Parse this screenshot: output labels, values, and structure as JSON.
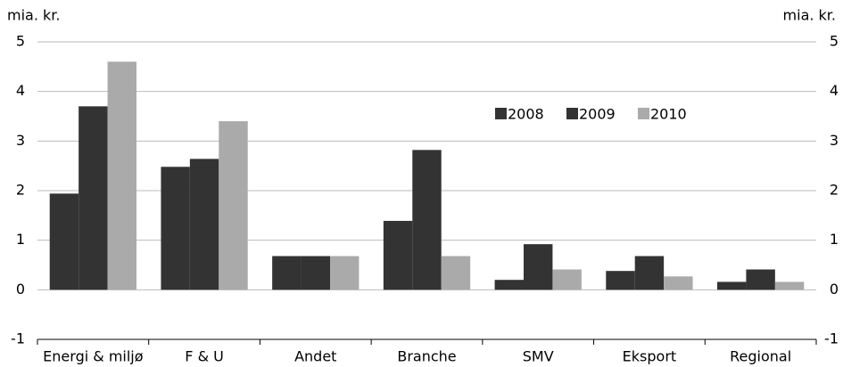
{
  "chart_data": {
    "type": "bar",
    "y_label_left": "mia. kr.",
    "y_label_right": "mia. kr.",
    "categories": [
      "Energi & miljø",
      "F & U",
      "Andet",
      "Branche",
      "SMV",
      "Eksport",
      "Regional"
    ],
    "series": [
      {
        "name": "2008",
        "color": "#333333",
        "values": [
          1.94,
          2.48,
          0.68,
          1.39,
          0.2,
          0.38,
          0.16
        ]
      },
      {
        "name": "2009",
        "color": "#333333",
        "values": [
          3.7,
          2.64,
          0.68,
          2.82,
          0.92,
          0.68,
          0.41
        ]
      },
      {
        "name": "2010",
        "color": "#aaaaaa",
        "values": [
          4.6,
          3.4,
          0.68,
          0.68,
          0.41,
          0.27,
          0.16
        ]
      }
    ],
    "ylim": [
      -1,
      5
    ],
    "yticks": [
      -1,
      0,
      1,
      2,
      3,
      4,
      5
    ],
    "y2lim": [
      -1,
      5
    ],
    "y2ticks": [
      -1,
      0,
      1,
      2,
      3,
      4,
      5
    ],
    "grid": true
  }
}
